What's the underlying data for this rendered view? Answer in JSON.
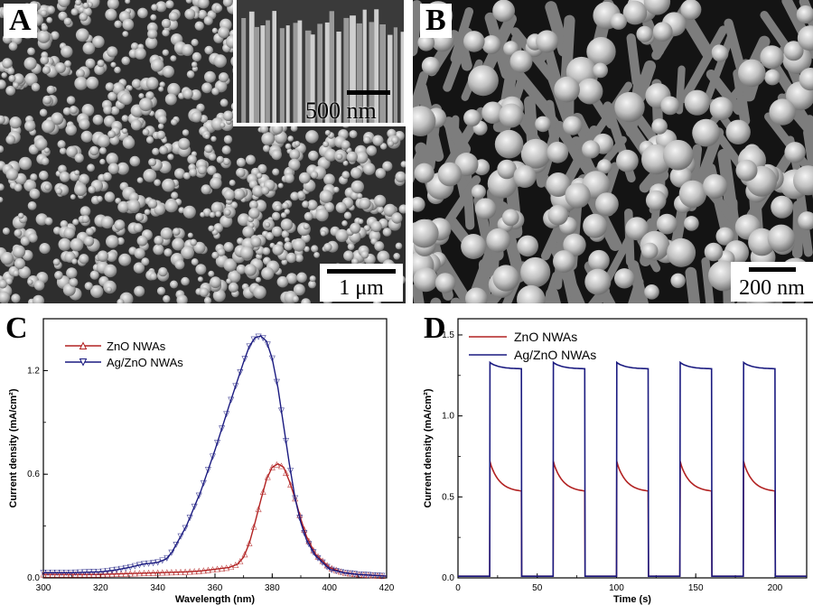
{
  "panels": {
    "A": {
      "label": "A",
      "scale": "1 μm",
      "inset_scale": "500 nm"
    },
    "B": {
      "label": "B",
      "scale": "200 nm"
    },
    "C": {
      "label": "C"
    },
    "D": {
      "label": "D"
    }
  },
  "colors": {
    "zno": "#b22222",
    "agzno": "#1a1a80"
  },
  "chart_data": [
    {
      "type": "line",
      "panel": "C",
      "xlabel": "Wavelength (nm)",
      "ylabel": "Current density (mA/cm²)",
      "xlim": [
        300,
        420
      ],
      "ylim": [
        0,
        1.5
      ],
      "xticks": [
        "300",
        "320",
        "340",
        "360",
        "380",
        "400",
        "420"
      ],
      "yticks": [
        "0.0",
        "0.6",
        "1.2"
      ],
      "markers": true,
      "series": [
        {
          "name": "ZnO NWAs",
          "color": "#b22222",
          "marker": "triangle-up",
          "x": [
            300,
            310,
            320,
            330,
            340,
            350,
            355,
            360,
            365,
            368,
            370,
            372,
            374,
            376,
            378,
            380,
            382,
            384,
            386,
            388,
            390,
            392,
            395,
            400,
            405,
            410,
            420
          ],
          "y": [
            0.02,
            0.02,
            0.02,
            0.025,
            0.03,
            0.035,
            0.04,
            0.05,
            0.06,
            0.08,
            0.12,
            0.2,
            0.32,
            0.45,
            0.57,
            0.64,
            0.66,
            0.64,
            0.56,
            0.46,
            0.34,
            0.24,
            0.14,
            0.06,
            0.03,
            0.02,
            0.01
          ]
        },
        {
          "name": "Ag/ZnO NWAs",
          "color": "#1a1a80",
          "marker": "triangle-down",
          "x": [
            300,
            310,
            320,
            325,
            330,
            335,
            338,
            340,
            343,
            345,
            350,
            355,
            360,
            365,
            370,
            372,
            374,
            376,
            378,
            380,
            382,
            384,
            386,
            388,
            390,
            392,
            395,
            400,
            405,
            410,
            420
          ],
          "y": [
            0.03,
            0.03,
            0.035,
            0.045,
            0.06,
            0.08,
            0.085,
            0.09,
            0.11,
            0.15,
            0.3,
            0.5,
            0.74,
            1.0,
            1.25,
            1.34,
            1.39,
            1.4,
            1.37,
            1.27,
            1.1,
            0.88,
            0.66,
            0.46,
            0.32,
            0.22,
            0.13,
            0.05,
            0.03,
            0.02,
            0.01
          ]
        }
      ]
    },
    {
      "type": "line",
      "panel": "D",
      "xlabel": "Time (s)",
      "ylabel": "Current density (mA/cm²)",
      "xlim": [
        0,
        220
      ],
      "ylim": [
        0,
        1.6
      ],
      "xticks": [
        "0",
        "50",
        "100",
        "150",
        "200"
      ],
      "yticks": [
        "0.0",
        "0.5",
        "1.0",
        "1.5"
      ],
      "series": [
        {
          "name": "ZnO NWAs",
          "color": "#b22222",
          "on_start": [
            20,
            60,
            100,
            140,
            180
          ],
          "on_duration": 20,
          "peak": 0.72,
          "plateau": 0.53,
          "baseline": 0.01
        },
        {
          "name": "Ag/ZnO NWAs",
          "color": "#1a1a80",
          "on_start": [
            20,
            60,
            100,
            140,
            180
          ],
          "on_duration": 20,
          "peak": 1.33,
          "plateau": 1.29,
          "baseline": 0.01
        }
      ]
    }
  ]
}
